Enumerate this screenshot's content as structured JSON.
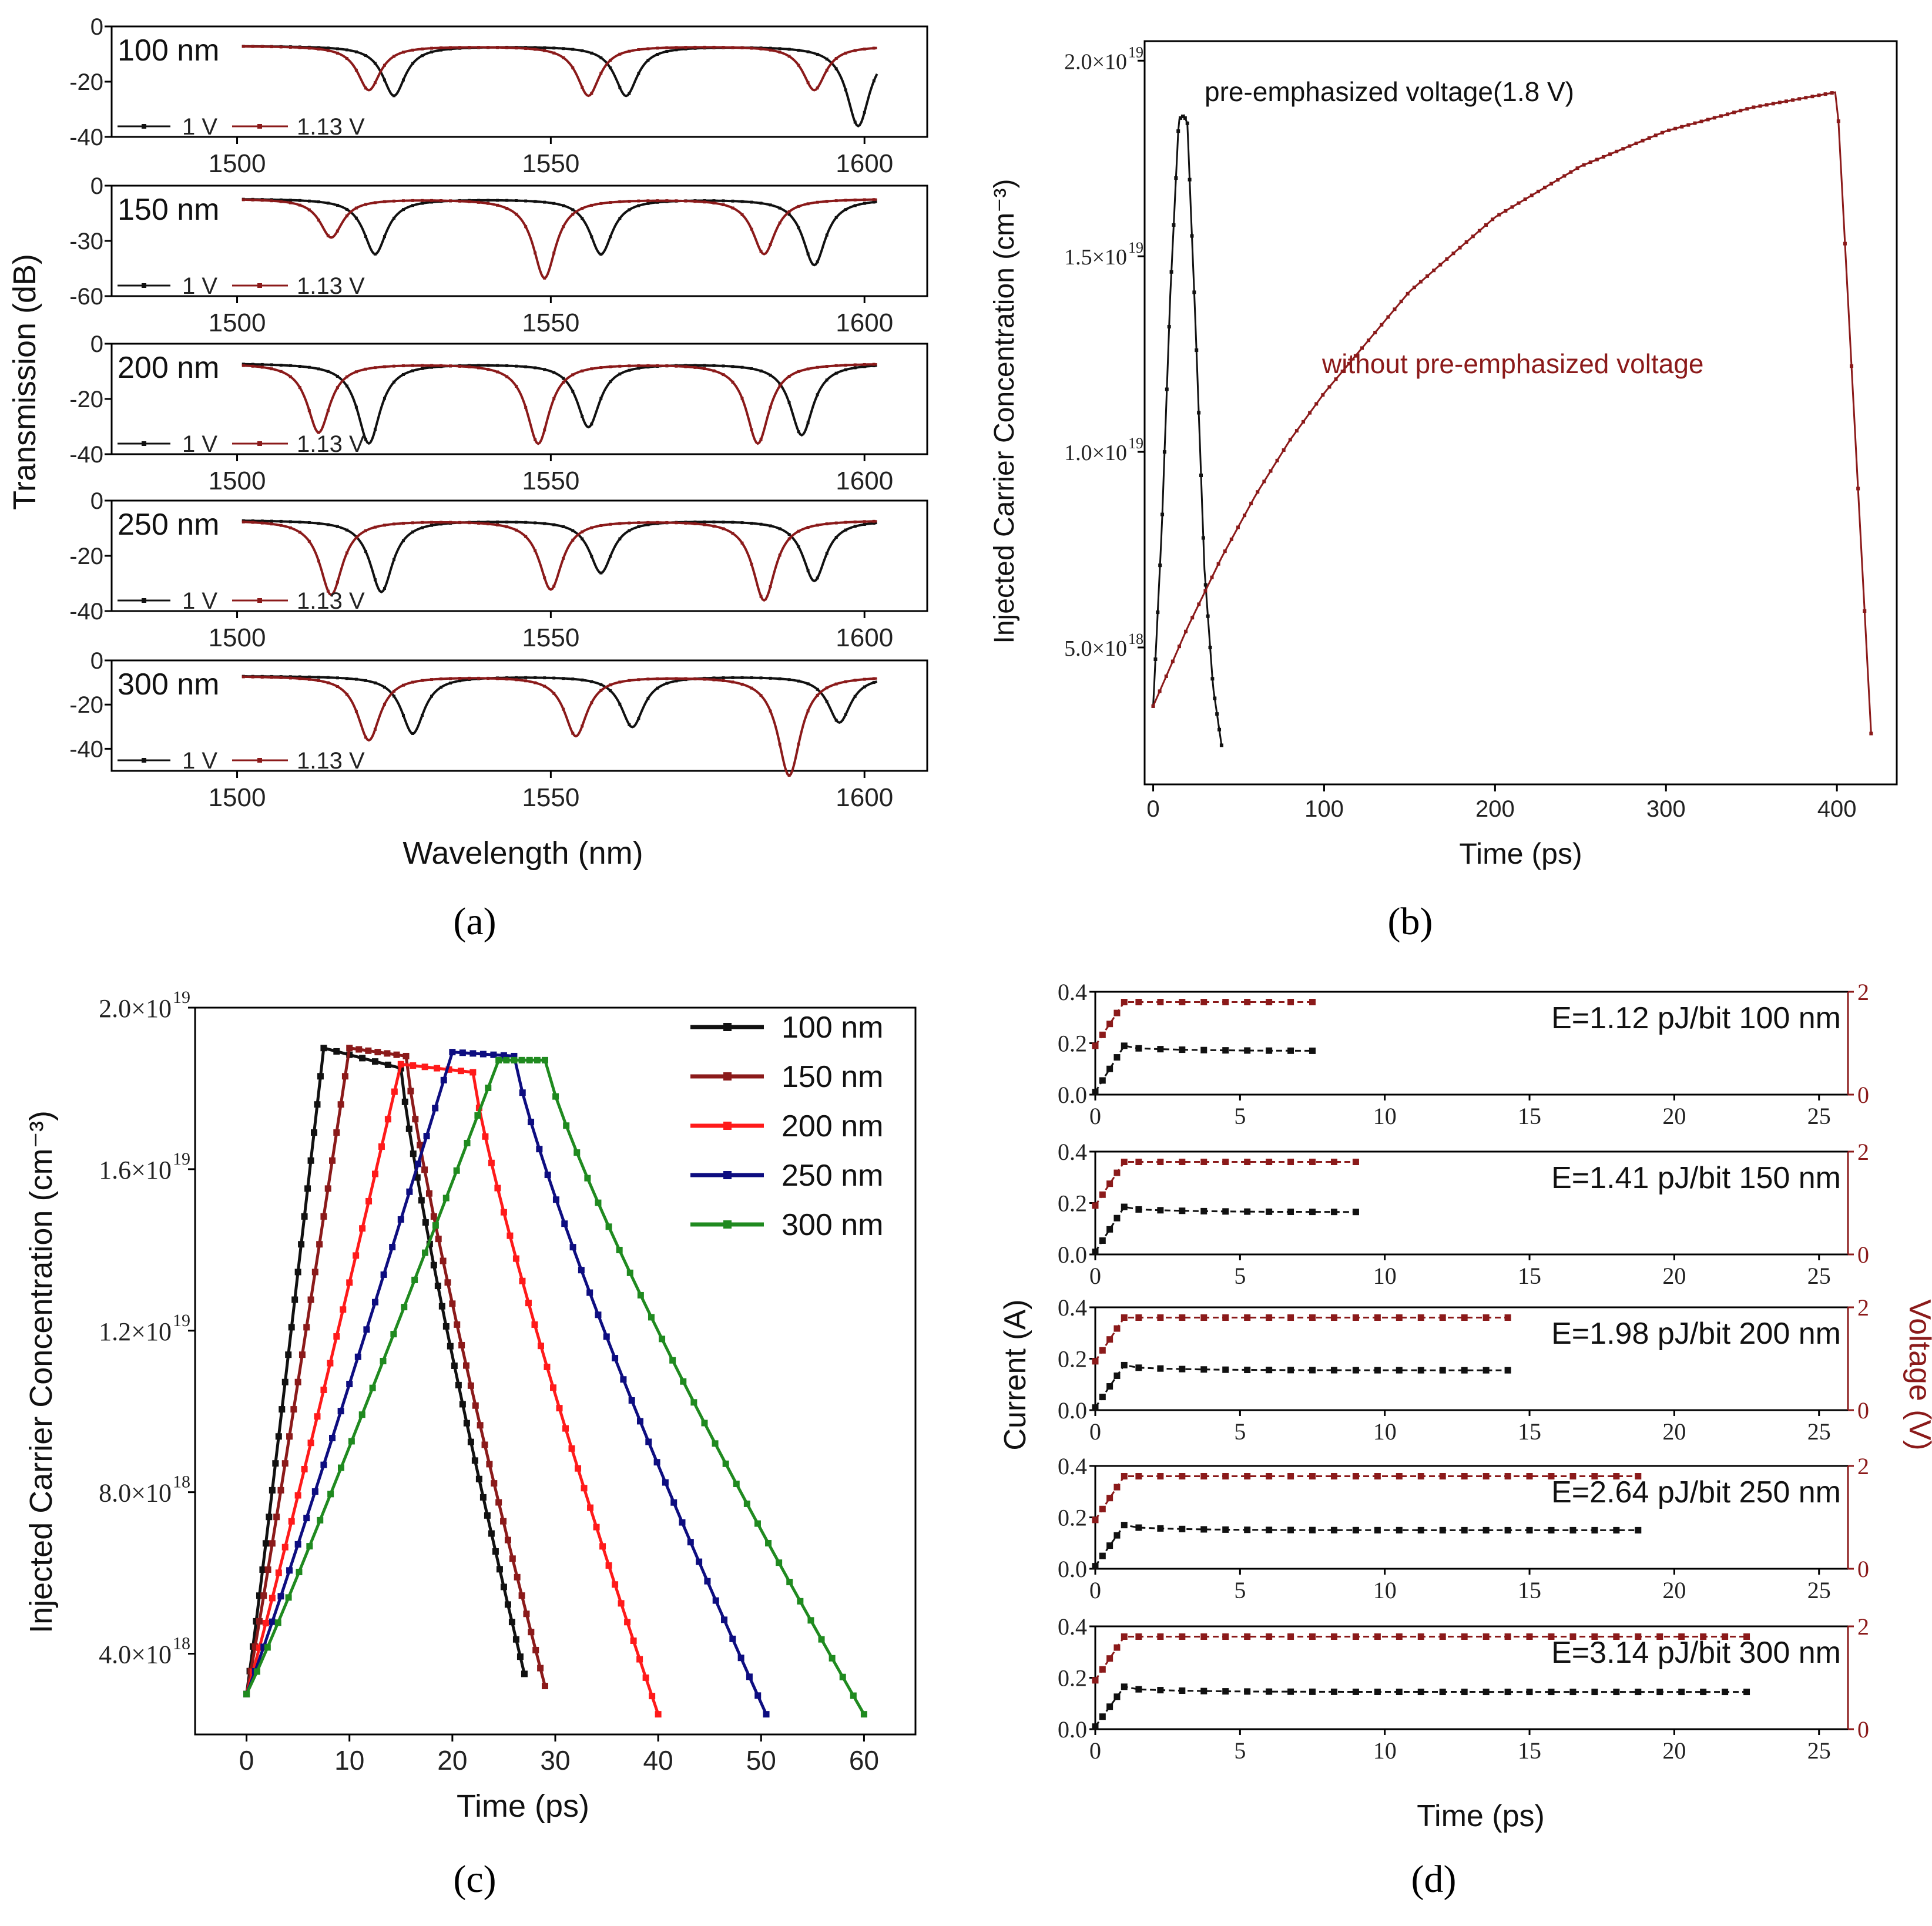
{
  "colors": {
    "black": "#111111",
    "darkred": "#8b1a1a",
    "red": "#ff1a1a",
    "navy": "#0d0d80",
    "green": "#1f8a1f"
  },
  "panel_labels": [
    "(a)",
    "(b)",
    "(c)",
    "(d)"
  ],
  "chart_data": [
    {
      "id": "a",
      "type": "line",
      "ylabel": "Transmission (dB)",
      "xlabel": "Wavelength (nm)",
      "xlim": [
        1480,
        1610
      ],
      "xticks": [
        "1500",
        "1550",
        "1600"
      ],
      "legend": [
        "1 V",
        "1.13 V"
      ],
      "series_names": [
        "1 V",
        "1.13 V"
      ],
      "subplots": [
        {
          "name": "100 nm",
          "ylim": [
            -40,
            0
          ],
          "yticks": [
            "0",
            "-20",
            "-40"
          ],
          "dips_1V": [
            1525,
            1562,
            1599
          ],
          "dips_113V": [
            1521,
            1556,
            1592
          ],
          "depths_1V": [
            -25,
            -25,
            -36
          ],
          "depths_113V": [
            -23,
            -25,
            -23
          ],
          "baseline": -7
        },
        {
          "name": "150 nm",
          "ylim": [
            -60,
            0
          ],
          "yticks": [
            "0",
            "-30",
            "-60"
          ],
          "dips_1V": [
            1522,
            1558,
            1592
          ],
          "dips_113V": [
            1515,
            1549,
            1584
          ],
          "depths_1V": [
            -37,
            -37,
            -43
          ],
          "depths_113V": [
            -28,
            -50,
            -37
          ],
          "baseline": -7
        },
        {
          "name": "200 nm",
          "ylim": [
            -40,
            0
          ],
          "yticks": [
            "0",
            "-20",
            "-40"
          ],
          "dips_1V": [
            1521,
            1556,
            1590
          ],
          "dips_113V": [
            1513,
            1548,
            1583
          ],
          "depths_1V": [
            -36,
            -30,
            -33
          ],
          "depths_113V": [
            -32,
            -36,
            -36
          ],
          "baseline": -7
        },
        {
          "name": "250 nm",
          "ylim": [
            -40,
            0
          ],
          "yticks": [
            "0",
            "-20",
            "-40"
          ],
          "dips_1V": [
            1523,
            1558,
            1592
          ],
          "dips_113V": [
            1515,
            1550,
            1584
          ],
          "depths_1V": [
            -33,
            -26,
            -29
          ],
          "depths_113V": [
            -34,
            -32,
            -36
          ],
          "baseline": -7
        },
        {
          "name": "300 nm",
          "ylim": [
            -50,
            0
          ],
          "yticks": [
            "0",
            "-20",
            "-40"
          ],
          "dips_1V": [
            1528,
            1563,
            1596
          ],
          "dips_113V": [
            1521,
            1554,
            1588
          ],
          "depths_1V": [
            -33,
            -30,
            -28
          ],
          "depths_113V": [
            -36,
            -34,
            -52
          ],
          "baseline": -7
        }
      ]
    },
    {
      "id": "b",
      "type": "line",
      "xlabel": "Time (ps)",
      "ylabel": "Injected Carrier Concentration (cm⁻³)",
      "xlim": [
        -5,
        435
      ],
      "ylim": [
        1.5e+18,
        2.05e+19
      ],
      "xticks": [
        0,
        100,
        200,
        300,
        400
      ],
      "yticks": [
        5e+18,
        1e+19,
        1.5e+19,
        2e+19
      ],
      "ytick_labels": [
        "5.0×10",
        "1.0×10",
        "1.5×10",
        "2.0×10"
      ],
      "ytick_exps": [
        "18",
        "19",
        "19",
        "19"
      ],
      "annotations": [
        "pre-emphasized voltage(1.8 V)",
        "without pre-emphasized voltage"
      ],
      "series": [
        {
          "name": "pre-emphasized voltage (1.8 V)",
          "x": [
            0,
            5,
            10,
            15,
            18,
            20,
            25,
            30,
            35,
            40
          ],
          "y": [
            3.5e+18,
            8e+18,
            1.4e+19,
            1.85e+19,
            1.86e+19,
            1.84e+19,
            1.3e+19,
            7e+18,
            4e+18,
            2.5e+18
          ]
        },
        {
          "name": "without pre-emphasized voltage",
          "x": [
            0,
            20,
            40,
            60,
            80,
            100,
            150,
            200,
            250,
            300,
            350,
            400,
            420
          ],
          "y": [
            3.5e+18,
            5.5e+18,
            7.3e+18,
            8.9e+18,
            1.03e+19,
            1.15e+19,
            1.41e+19,
            1.6e+19,
            1.73e+19,
            1.82e+19,
            1.88e+19,
            1.92e+19,
            2.8e+18
          ]
        }
      ]
    },
    {
      "id": "c",
      "type": "line",
      "xlabel": "Time (ps)",
      "ylabel": "Injected Carrier Concentration (cm⁻³)",
      "xlim": [
        -5,
        65
      ],
      "ylim": [
        2e+18,
        2e+19
      ],
      "xticks": [
        0,
        10,
        20,
        30,
        40,
        50,
        60
      ],
      "yticks": [
        4e+18,
        8e+18,
        1.2e+19,
        1.6e+19,
        2e+19
      ],
      "ytick_labels": [
        "4.0×10",
        "8.0×10",
        "1.2×10",
        "1.6×10",
        "2.0×10"
      ],
      "ytick_exps": [
        "18",
        "18",
        "19",
        "19",
        "19"
      ],
      "series": [
        {
          "name": "100 nm",
          "color": "#111111",
          "up_end": 7.5,
          "peak": 1.9e+19,
          "plateau_end": 15.0,
          "plateau_val": 1.85e+19,
          "end": 27,
          "end_val": 3.5e+18
        },
        {
          "name": "150 nm",
          "color": "#8b1a1a",
          "up_end": 10.0,
          "peak": 1.9e+19,
          "plateau_end": 15.5,
          "plateau_val": 1.88e+19,
          "end": 29,
          "end_val": 3.2e+18
        },
        {
          "name": "200 nm",
          "color": "#ff1a1a",
          "up_end": 15.0,
          "peak": 1.86e+19,
          "plateau_end": 22.0,
          "plateau_val": 1.84e+19,
          "end": 40,
          "end_val": 2.5e+18
        },
        {
          "name": "250 nm",
          "color": "#0d0d80",
          "up_end": 20.0,
          "peak": 1.89e+19,
          "plateau_end": 26.0,
          "plateau_val": 1.88e+19,
          "end": 50.5,
          "end_val": 2.5e+18
        },
        {
          "name": "300 nm",
          "color": "#1f8a1f",
          "up_end": 24.5,
          "peak": 1.87e+19,
          "plateau_end": 29.0,
          "plateau_val": 1.87e+19,
          "end": 60,
          "end_val": 2.5e+18
        }
      ]
    },
    {
      "id": "d",
      "type": "line",
      "xlabel": "Time (ps)",
      "ylabel_left": "Current (A)",
      "ylabel_right": "Voltage (V)",
      "xlim": [
        0,
        26
      ],
      "xticks": [
        0,
        5,
        10,
        15,
        20,
        25
      ],
      "ylim_left": [
        0,
        0.4
      ],
      "yticks_left": [
        "0.0",
        "0.2",
        "0.4"
      ],
      "ylim_right": [
        0,
        2
      ],
      "yticks_right": [
        "0",
        "2"
      ],
      "subplots": [
        {
          "label": "E=1.12 pJ/bit  100 nm",
          "current_plateau": 0.17,
          "voltage_plateau": 1.8,
          "end": 7.5
        },
        {
          "label": "E=1.41 pJ/bit  150 nm",
          "current_plateau": 0.165,
          "voltage_plateau": 1.8,
          "end": 9.5
        },
        {
          "label": "E=1.98 pJ/bit  200 nm",
          "current_plateau": 0.155,
          "voltage_plateau": 1.8,
          "end": 14.3
        },
        {
          "label": "E=2.64 pJ/bit  250 nm",
          "current_plateau": 0.15,
          "voltage_plateau": 1.8,
          "end": 19.2
        },
        {
          "label": "E=3.14 pJ/bit   300 nm",
          "current_plateau": 0.145,
          "voltage_plateau": 1.8,
          "end": 23.0
        }
      ]
    }
  ]
}
